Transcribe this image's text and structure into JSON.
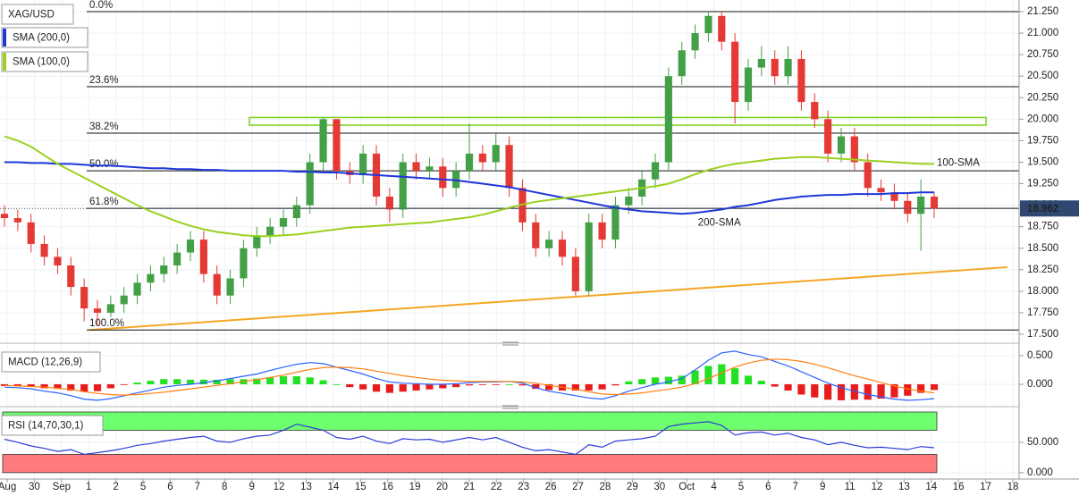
{
  "chart_data": [
    {
      "type": "candlestick",
      "name": "XAG/USD",
      "up_color": "#43a047",
      "down_color": "#e53935",
      "open": [
        18.9,
        18.85,
        18.8,
        18.55,
        18.4,
        18.3,
        18.05,
        17.8,
        17.75,
        17.85,
        17.95,
        18.1,
        18.2,
        18.3,
        18.45,
        18.6,
        18.2,
        17.95,
        18.15,
        18.5,
        18.65,
        18.75,
        18.85,
        19.0,
        19.5,
        20.0,
        19.4,
        19.35,
        19.6,
        19.1,
        18.95,
        19.5,
        19.4,
        19.45,
        19.2,
        19.4,
        19.6,
        19.5,
        19.7,
        19.2,
        18.8,
        18.5,
        18.6,
        18.4,
        18.0,
        18.8,
        18.6,
        19.0,
        19.1,
        19.3,
        19.5,
        20.5,
        20.8,
        21.0,
        21.2,
        20.9,
        20.2,
        20.6,
        20.7,
        20.5,
        20.7,
        20.2,
        20.0,
        19.6,
        19.8,
        19.5,
        19.2,
        19.15,
        19.05,
        18.9,
        19.1
      ],
      "high": [
        19.0,
        18.95,
        18.9,
        18.65,
        18.5,
        18.4,
        18.15,
        17.9,
        17.95,
        18.05,
        18.2,
        18.3,
        18.4,
        18.55,
        18.7,
        18.7,
        18.3,
        18.25,
        18.6,
        18.75,
        18.85,
        18.95,
        19.1,
        19.6,
        20.02,
        20.0,
        19.5,
        19.7,
        19.7,
        19.2,
        19.6,
        19.6,
        19.55,
        19.55,
        19.5,
        19.95,
        19.7,
        19.85,
        19.8,
        19.3,
        18.9,
        18.7,
        18.7,
        18.5,
        18.9,
        18.9,
        19.1,
        19.2,
        19.4,
        19.6,
        20.6,
        20.9,
        21.1,
        21.25,
        21.25,
        21.0,
        20.7,
        20.85,
        20.8,
        20.85,
        20.8,
        20.3,
        20.1,
        19.9,
        19.9,
        19.6,
        19.3,
        19.25,
        19.15,
        19.3,
        19.15
      ],
      "low": [
        18.75,
        18.7,
        18.45,
        18.3,
        18.2,
        17.95,
        17.65,
        17.6,
        17.7,
        17.75,
        17.85,
        18.0,
        18.1,
        18.2,
        18.35,
        18.1,
        17.85,
        17.85,
        18.05,
        18.4,
        18.55,
        18.65,
        18.75,
        18.9,
        19.4,
        19.3,
        19.25,
        19.25,
        19.0,
        18.8,
        18.85,
        19.3,
        19.3,
        19.1,
        19.1,
        19.3,
        19.4,
        19.4,
        19.1,
        18.7,
        18.4,
        18.4,
        18.3,
        17.95,
        17.95,
        18.5,
        18.5,
        18.9,
        19.0,
        19.2,
        19.4,
        20.4,
        20.7,
        20.9,
        20.8,
        19.95,
        20.1,
        20.5,
        20.4,
        20.4,
        20.1,
        19.9,
        19.5,
        19.5,
        19.4,
        19.1,
        19.05,
        18.95,
        18.8,
        18.47,
        18.85
      ],
      "close": [
        18.85,
        18.8,
        18.55,
        18.4,
        18.3,
        18.05,
        17.8,
        17.75,
        17.85,
        17.95,
        18.1,
        18.2,
        18.3,
        18.45,
        18.6,
        18.2,
        17.95,
        18.15,
        18.5,
        18.65,
        18.75,
        18.85,
        19.0,
        19.5,
        20.0,
        19.4,
        19.35,
        19.6,
        19.1,
        18.95,
        19.5,
        19.4,
        19.45,
        19.2,
        19.4,
        19.6,
        19.5,
        19.7,
        19.2,
        18.8,
        18.5,
        18.6,
        18.4,
        18.0,
        18.8,
        18.6,
        19.0,
        19.1,
        19.3,
        19.5,
        20.5,
        20.8,
        21.0,
        21.2,
        20.9,
        20.2,
        20.6,
        20.7,
        20.5,
        20.7,
        20.2,
        20.0,
        19.6,
        19.8,
        19.5,
        19.2,
        19.15,
        19.05,
        18.9,
        19.1,
        18.96
      ],
      "series": [
        {
          "name": "SMA (200,0)",
          "color": "#1f36d8",
          "values": [
            19.5,
            19.5,
            19.49,
            19.49,
            19.48,
            19.48,
            19.47,
            19.46,
            19.46,
            19.45,
            19.44,
            19.43,
            19.43,
            19.42,
            19.42,
            19.41,
            19.41,
            19.4,
            19.4,
            19.4,
            19.4,
            19.4,
            19.39,
            19.39,
            19.38,
            19.38,
            19.37,
            19.36,
            19.35,
            19.34,
            19.33,
            19.32,
            19.31,
            19.3,
            19.29,
            19.27,
            19.25,
            19.23,
            19.21,
            19.18,
            19.15,
            19.12,
            19.09,
            19.06,
            19.03,
            19.0,
            18.97,
            18.95,
            18.93,
            18.92,
            18.91,
            18.9,
            18.91,
            18.93,
            18.95,
            18.98,
            19.0,
            19.03,
            19.06,
            19.08,
            19.1,
            19.11,
            19.12,
            19.12,
            19.13,
            19.13,
            19.13,
            19.14,
            19.14,
            19.15,
            19.15
          ]
        },
        {
          "name": "SMA (100,0)",
          "color": "#9ad11e",
          "values": [
            19.8,
            19.75,
            19.68,
            19.58,
            19.48,
            19.4,
            19.32,
            19.24,
            19.16,
            19.08,
            19.0,
            18.93,
            18.87,
            18.81,
            18.76,
            18.72,
            18.69,
            18.67,
            18.65,
            18.64,
            18.64,
            18.65,
            18.66,
            18.68,
            18.7,
            18.72,
            18.74,
            18.75,
            18.76,
            18.77,
            18.78,
            18.79,
            18.8,
            18.82,
            18.84,
            18.86,
            18.89,
            18.93,
            18.97,
            19.01,
            19.04,
            19.06,
            19.08,
            19.1,
            19.12,
            19.14,
            19.16,
            19.18,
            19.2,
            19.22,
            19.25,
            19.3,
            19.36,
            19.41,
            19.45,
            19.48,
            19.5,
            19.52,
            19.54,
            19.55,
            19.56,
            19.56,
            19.55,
            19.54,
            19.53,
            19.52,
            19.51,
            19.5,
            19.49,
            19.48,
            19.48
          ]
        }
      ],
      "annotations": [
        {
          "text": "200-SMA",
          "color": "#1f36d8"
        },
        {
          "text": "100-SMA",
          "color": "#8bc34a"
        }
      ],
      "fib_levels": [
        {
          "label": "0.0%",
          "value": 21.25
        },
        {
          "label": "23.6%",
          "value": 20.377
        },
        {
          "label": "38.2%",
          "value": 19.837
        },
        {
          "label": "50.0%",
          "value": 19.4
        },
        {
          "label": "61.8%",
          "value": 18.963
        },
        {
          "label": "100.0%",
          "value": 17.55
        }
      ],
      "zone": {
        "range": [
          19.93,
          20.02
        ],
        "color": "#7cd11e"
      },
      "trendline": {
        "start": 17.55,
        "end": 18.28,
        "color": "#f5a623"
      },
      "last_price": 18.962,
      "last_price_color": "#2f4872",
      "ylim": [
        17.438,
        21.385
      ],
      "yticks": [
        {
          "value": 17.5,
          "label": "17.500"
        },
        {
          "value": 17.75,
          "label": "17.750"
        },
        {
          "value": 18,
          "label": "18.000"
        },
        {
          "value": 18.25,
          "label": "18.250"
        },
        {
          "value": 18.5,
          "label": "18.500"
        },
        {
          "value": 18.75,
          "label": "18.750"
        },
        {
          "value": 19,
          "label": "19.000"
        },
        {
          "value": 19.25,
          "label": "19.250"
        },
        {
          "value": 19.5,
          "label": "19.500"
        },
        {
          "value": 19.75,
          "label": "19.750"
        },
        {
          "value": 20,
          "label": "20.000"
        },
        {
          "value": 20.25,
          "label": "20.250"
        },
        {
          "value": 20.5,
          "label": "20.500"
        },
        {
          "value": 20.75,
          "label": "20.750"
        },
        {
          "value": 21,
          "label": "21.000"
        },
        {
          "value": 21.25,
          "label": "21.250"
        }
      ],
      "x_labels": [
        "Aug",
        "30",
        "Sep",
        "1",
        "2",
        "5",
        "6",
        "7",
        "8",
        "9",
        "12",
        "13",
        "14",
        "15",
        "16",
        "19",
        "20",
        "21",
        "22",
        "23",
        "26",
        "27",
        "28",
        "29",
        "30",
        "Oct",
        "4",
        "5",
        "6",
        "7",
        "9",
        "11",
        "12",
        "13",
        "14",
        "16",
        "17",
        "18"
      ],
      "grid": true
    },
    {
      "type": "macd",
      "title": "MACD (12,26,9)",
      "series": [
        {
          "color": "#2962ff",
          "values": [
            -0.05,
            -0.06,
            -0.08,
            -0.12,
            -0.15,
            -0.2,
            -0.26,
            -0.28,
            -0.25,
            -0.2,
            -0.15,
            -0.1,
            -0.05,
            -0.02,
            0.0,
            0.03,
            0.06,
            0.1,
            0.14,
            0.18,
            0.24,
            0.3,
            0.35,
            0.38,
            0.36,
            0.3,
            0.24,
            0.18,
            0.1,
            0.04,
            0.02,
            0.01,
            0.0,
            0.0,
            0.01,
            0.03,
            0.04,
            0.04,
            0.05,
            0.02,
            -0.06,
            -0.12,
            -0.16,
            -0.2,
            -0.24,
            -0.26,
            -0.2,
            -0.12,
            -0.06,
            0.0,
            0.04,
            0.1,
            0.25,
            0.42,
            0.55,
            0.58,
            0.52,
            0.48,
            0.4,
            0.32,
            0.22,
            0.12,
            0.02,
            -0.06,
            -0.12,
            -0.18,
            -0.22,
            -0.26,
            -0.28,
            -0.27,
            -0.25
          ]
        },
        {
          "color": "#ff7f0e",
          "values": [
            -0.02,
            -0.03,
            -0.04,
            -0.05,
            -0.07,
            -0.09,
            -0.13,
            -0.16,
            -0.18,
            -0.19,
            -0.18,
            -0.16,
            -0.14,
            -0.11,
            -0.08,
            -0.05,
            -0.02,
            0.01,
            0.05,
            0.08,
            0.12,
            0.16,
            0.21,
            0.26,
            0.29,
            0.3,
            0.29,
            0.27,
            0.23,
            0.19,
            0.15,
            0.12,
            0.09,
            0.07,
            0.06,
            0.05,
            0.05,
            0.05,
            0.05,
            0.04,
            0.02,
            -0.02,
            -0.05,
            -0.09,
            -0.13,
            -0.17,
            -0.18,
            -0.17,
            -0.15,
            -0.12,
            -0.09,
            -0.05,
            0.01,
            0.1,
            0.2,
            0.3,
            0.37,
            0.42,
            0.44,
            0.43,
            0.4,
            0.35,
            0.29,
            0.22,
            0.15,
            0.09,
            0.03,
            -0.03,
            -0.08,
            -0.12,
            -0.15
          ]
        }
      ],
      "histogram": {
        "up_color": "#22e022",
        "down_color": "#e81c1c",
        "values": [
          -0.03,
          -0.03,
          -0.04,
          -0.07,
          -0.08,
          -0.11,
          -0.13,
          -0.12,
          -0.07,
          -0.01,
          0.03,
          0.06,
          0.09,
          0.09,
          0.08,
          0.08,
          0.08,
          0.09,
          0.09,
          0.1,
          0.12,
          0.14,
          0.14,
          0.12,
          0.07,
          0.0,
          -0.05,
          -0.09,
          -0.13,
          -0.15,
          -0.13,
          -0.11,
          -0.09,
          -0.07,
          -0.05,
          -0.02,
          -0.01,
          -0.01,
          0.0,
          -0.02,
          -0.08,
          -0.1,
          -0.11,
          -0.11,
          -0.11,
          -0.09,
          -0.02,
          0.05,
          0.09,
          0.12,
          0.13,
          0.15,
          0.24,
          0.32,
          0.35,
          0.28,
          0.15,
          0.06,
          -0.04,
          -0.11,
          -0.18,
          -0.23,
          -0.27,
          -0.28,
          -0.27,
          -0.27,
          -0.25,
          -0.23,
          -0.2,
          -0.15,
          -0.1
        ]
      },
      "ylim": [
        -0.344,
        0.656
      ],
      "yticks": [
        {
          "value": 0.5,
          "label": "0.500"
        },
        {
          "value": 0,
          "label": "0.000"
        }
      ]
    },
    {
      "type": "rsi",
      "title": "RSI (14,70,30,1)",
      "series": [
        {
          "color": "#2b3bd8",
          "values": [
            55,
            50,
            44,
            40,
            35,
            38,
            30,
            33,
            36,
            40,
            45,
            48,
            52,
            55,
            58,
            60,
            52,
            50,
            56,
            60,
            62,
            70,
            80,
            75,
            70,
            58,
            55,
            60,
            52,
            48,
            56,
            54,
            55,
            50,
            54,
            58,
            54,
            58,
            50,
            42,
            36,
            38,
            34,
            30,
            46,
            42,
            52,
            54,
            56,
            60,
            76,
            80,
            82,
            84,
            78,
            62,
            66,
            67,
            62,
            65,
            58,
            54,
            46,
            50,
            45,
            41,
            42,
            40,
            38,
            43,
            41
          ]
        }
      ],
      "bands": [
        {
          "range": [
            70,
            100
          ],
          "color": "#6dff6d"
        },
        {
          "range": [
            0,
            30
          ],
          "color": "#ff7b7b"
        }
      ],
      "ylim": [
        -7.6,
        101.5
      ],
      "yticks": [
        {
          "value": 50,
          "label": "50.000"
        },
        {
          "value": 0,
          "label": "0.000"
        }
      ]
    }
  ]
}
